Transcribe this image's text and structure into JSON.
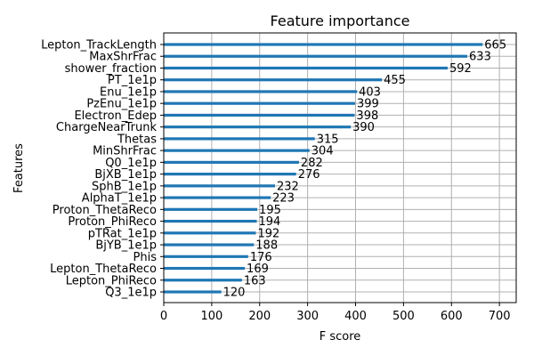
{
  "chart_data": {
    "type": "bar",
    "orientation": "horizontal",
    "title": "Feature importance",
    "xlabel": "F score",
    "ylabel": "Features",
    "xlim": [
      0,
      735
    ],
    "xticks": [
      0,
      100,
      200,
      300,
      400,
      500,
      600,
      700
    ],
    "grid": true,
    "bar_color": "#1f77b4",
    "categories": [
      "Lepton_TrackLength",
      "MaxShrFrac",
      "shower_fraction",
      "PT_1e1p",
      "Enu_1e1p",
      "PzEnu_1e1p",
      "Electron_Edep",
      "ChargeNearTrunk",
      "Thetas",
      "MinShrFrac",
      "Q0_1e1p",
      "BjXB_1e1p",
      "SphB_1e1p",
      "AlphaT_1e1p",
      "Proton_ThetaReco",
      "Proton_PhiReco",
      "pTRat_1e1p",
      "BjYB_1e1p",
      "Phis",
      "Lepton_ThetaReco",
      "Lepton_PhiReco",
      "Q3_1e1p"
    ],
    "values": [
      665,
      633,
      592,
      455,
      403,
      399,
      398,
      390,
      315,
      304,
      282,
      276,
      232,
      223,
      195,
      194,
      192,
      188,
      176,
      169,
      163,
      120
    ]
  }
}
